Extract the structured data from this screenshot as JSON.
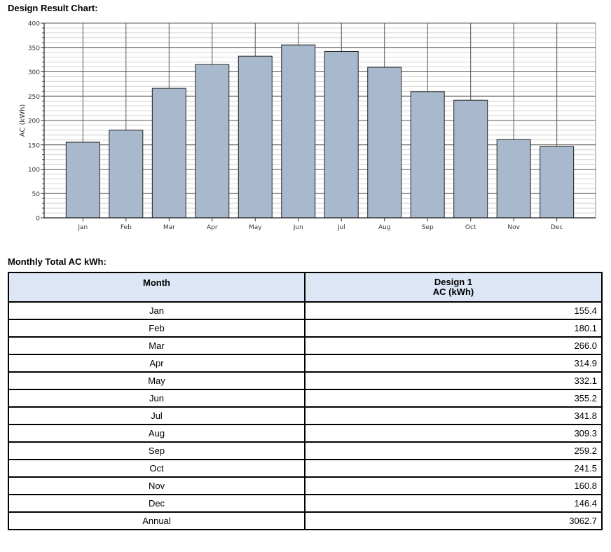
{
  "chart_section_title": "Design Result Chart:",
  "table_section_title": "Monthly Total AC kWh:",
  "chart_data": {
    "type": "bar",
    "categories": [
      "Jan",
      "Feb",
      "Mar",
      "Apr",
      "May",
      "Jun",
      "Jul",
      "Aug",
      "Sep",
      "Oct",
      "Nov",
      "Dec"
    ],
    "values": [
      155.4,
      180.1,
      266.0,
      314.9,
      332.1,
      355.2,
      341.8,
      309.3,
      259.2,
      241.5,
      160.8,
      146.4
    ],
    "title": "",
    "xlabel": "",
    "ylabel": "AC (kWh)",
    "ylim": [
      0,
      400
    ],
    "yticks": [
      0,
      50,
      100,
      150,
      200,
      250,
      300,
      350,
      400
    ],
    "grid": true,
    "bar_color": "#a9b9cd"
  },
  "table": {
    "headers": {
      "month": "Month",
      "design_line1": "Design 1",
      "design_line2": "AC (kWh)"
    },
    "rows": [
      {
        "month": "Jan",
        "value": "155.4"
      },
      {
        "month": "Feb",
        "value": "180.1"
      },
      {
        "month": "Mar",
        "value": "266.0"
      },
      {
        "month": "Apr",
        "value": "314.9"
      },
      {
        "month": "May",
        "value": "332.1"
      },
      {
        "month": "Jun",
        "value": "355.2"
      },
      {
        "month": "Jul",
        "value": "341.8"
      },
      {
        "month": "Aug",
        "value": "309.3"
      },
      {
        "month": "Sep",
        "value": "259.2"
      },
      {
        "month": "Oct",
        "value": "241.5"
      },
      {
        "month": "Nov",
        "value": "160.8"
      },
      {
        "month": "Dec",
        "value": "146.4"
      },
      {
        "month": "Annual",
        "value": "3062.7"
      }
    ],
    "header_bg": "#dce6f5"
  }
}
